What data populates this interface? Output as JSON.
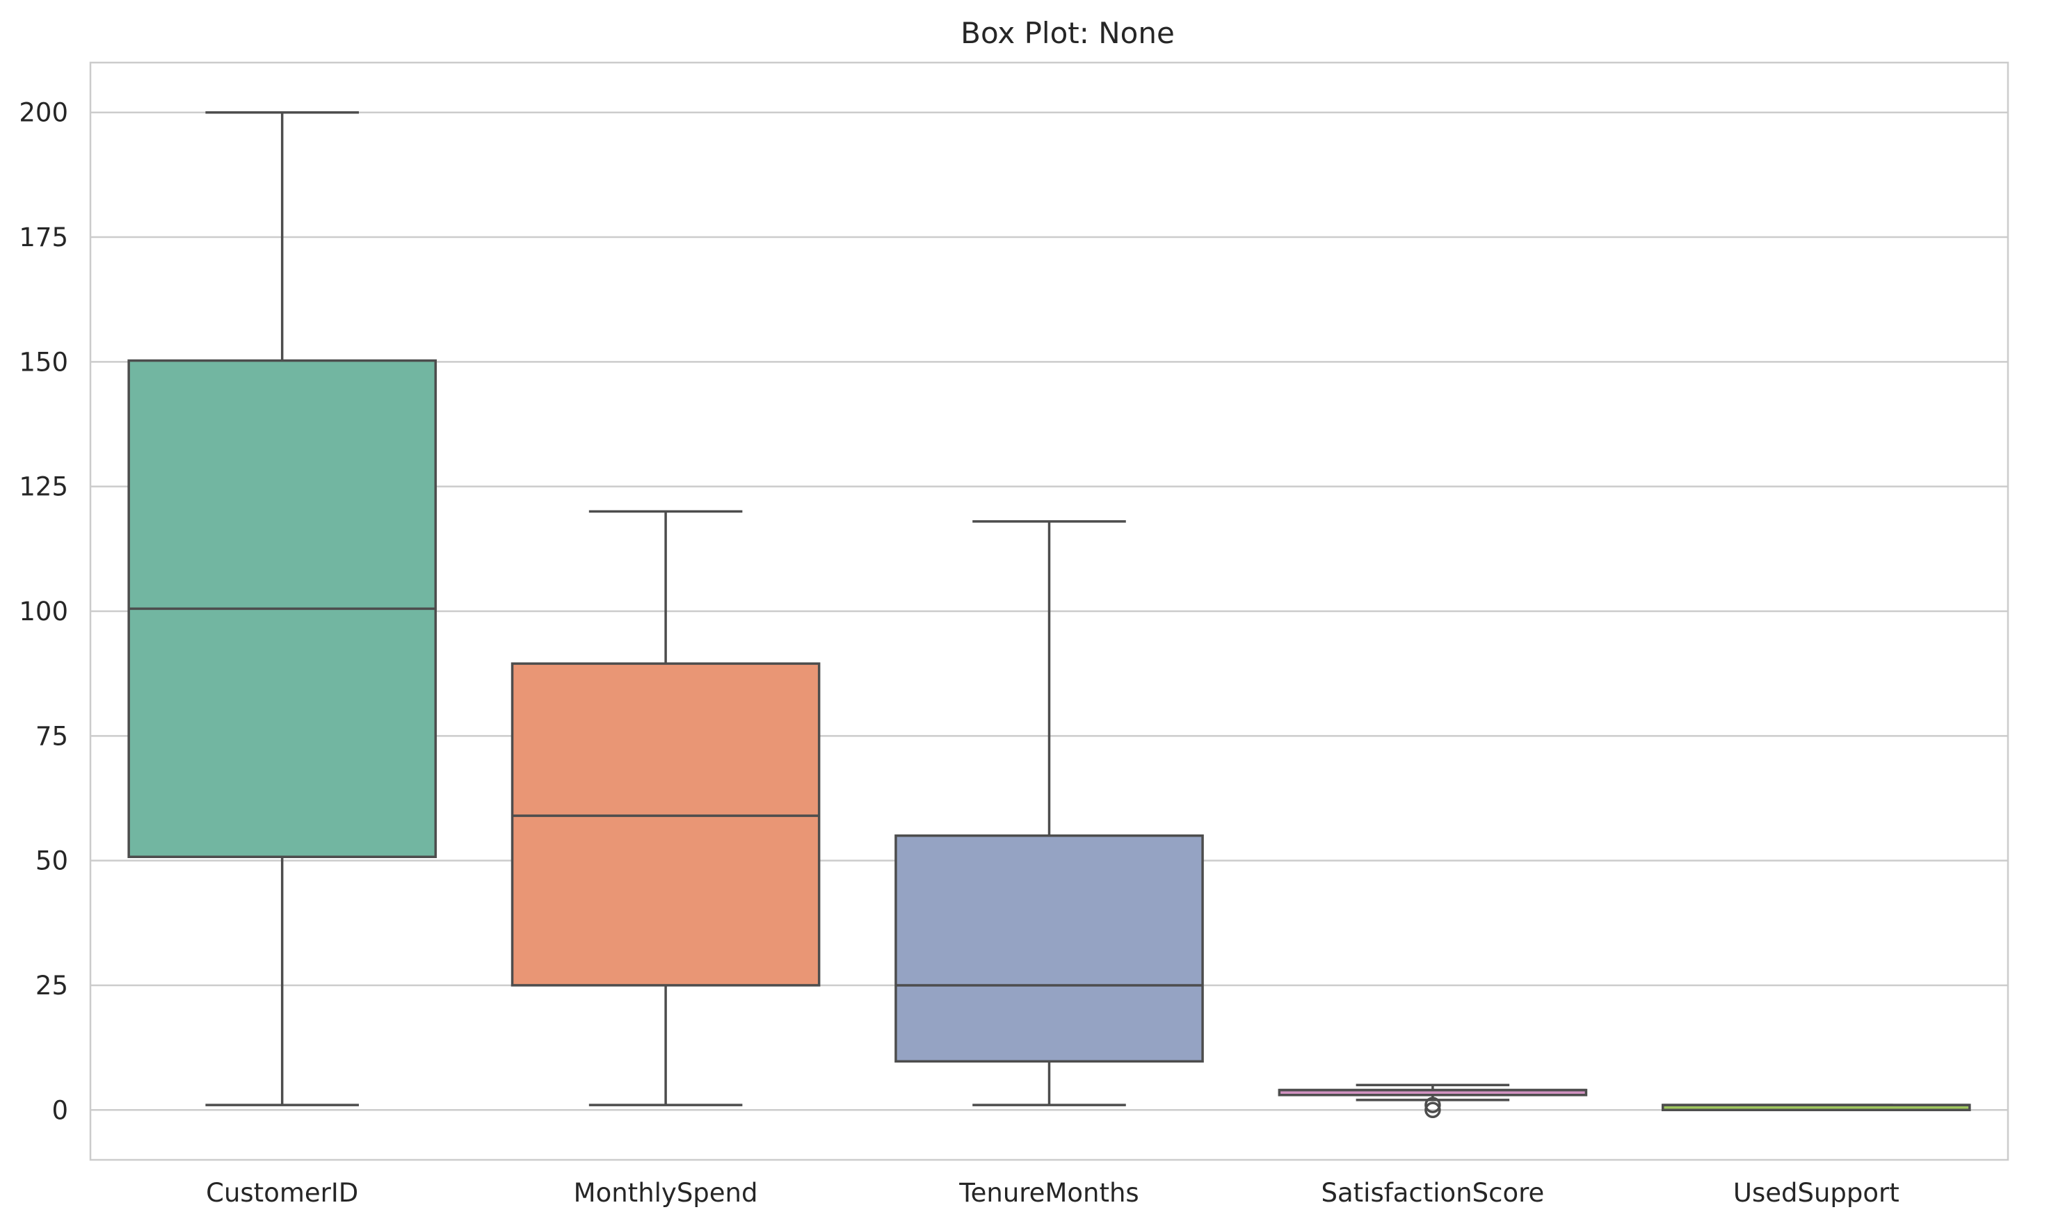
{
  "chart_data": {
    "type": "box",
    "title": "Box Plot: None",
    "xlabel": "",
    "ylabel": "",
    "ylim": [
      -10,
      210
    ],
    "yticks": [
      0,
      25,
      50,
      75,
      100,
      125,
      150,
      175,
      200
    ],
    "grid": "horizontal",
    "categories": [
      "CustomerID",
      "MonthlySpend",
      "TenureMonths",
      "SatisfactionScore",
      "UsedSupport"
    ],
    "boxes": [
      {
        "name": "CustomerID",
        "whislo": 1,
        "q1": 50.75,
        "med": 100.5,
        "q3": 150.25,
        "whishi": 200,
        "fliers": [],
        "color": "#72b6a1"
      },
      {
        "name": "MonthlySpend",
        "whislo": 1,
        "q1": 25,
        "med": 59,
        "q3": 89.5,
        "whishi": 120,
        "fliers": [],
        "color": "#e99675"
      },
      {
        "name": "TenureMonths",
        "whislo": 1,
        "q1": 9.75,
        "med": 25,
        "q3": 55,
        "whishi": 118,
        "fliers": [],
        "color": "#95a3c3"
      },
      {
        "name": "SatisfactionScore",
        "whislo": 2,
        "q1": 3,
        "med": 4,
        "q3": 4,
        "whishi": 5,
        "fliers": [
          0,
          1
        ],
        "color": "#d192c1"
      },
      {
        "name": "UsedSupport",
        "whislo": 0,
        "q1": 0,
        "med": 1,
        "q3": 1,
        "whishi": 1,
        "fliers": [],
        "color": "#9fc65f"
      }
    ]
  }
}
